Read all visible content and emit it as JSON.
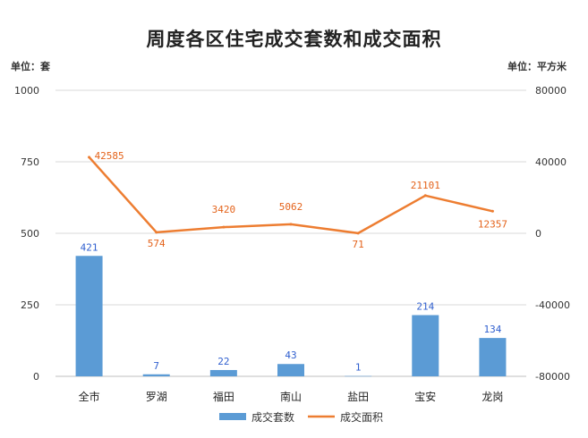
{
  "chart_data": {
    "type": "bar+line",
    "title": "周度各区住宅成交套数和成交面积",
    "left_unit": "单位：套",
    "right_unit": "单位：平方米",
    "categories": [
      "全市",
      "罗湖",
      "福田",
      "南山",
      "盐田",
      "宝安",
      "龙岗"
    ],
    "series": [
      {
        "name": "成交套数",
        "type": "bar",
        "axis": "left",
        "color": "#5b9bd5",
        "values": [
          421,
          7,
          22,
          43,
          1,
          214,
          134
        ]
      },
      {
        "name": "成交面积",
        "type": "line",
        "axis": "right",
        "color": "#ed7d31",
        "values": [
          42585,
          574,
          3420,
          5062,
          71,
          21101,
          12357
        ]
      }
    ],
    "left_axis": {
      "min": 0,
      "max": 1000,
      "ticks": [
        0,
        250,
        500,
        750,
        1000
      ]
    },
    "right_axis": {
      "min": -80000,
      "max": 80000,
      "ticks": [
        -80000,
        -40000,
        0,
        40000,
        80000
      ]
    },
    "grid": true,
    "legend": "bottom"
  }
}
